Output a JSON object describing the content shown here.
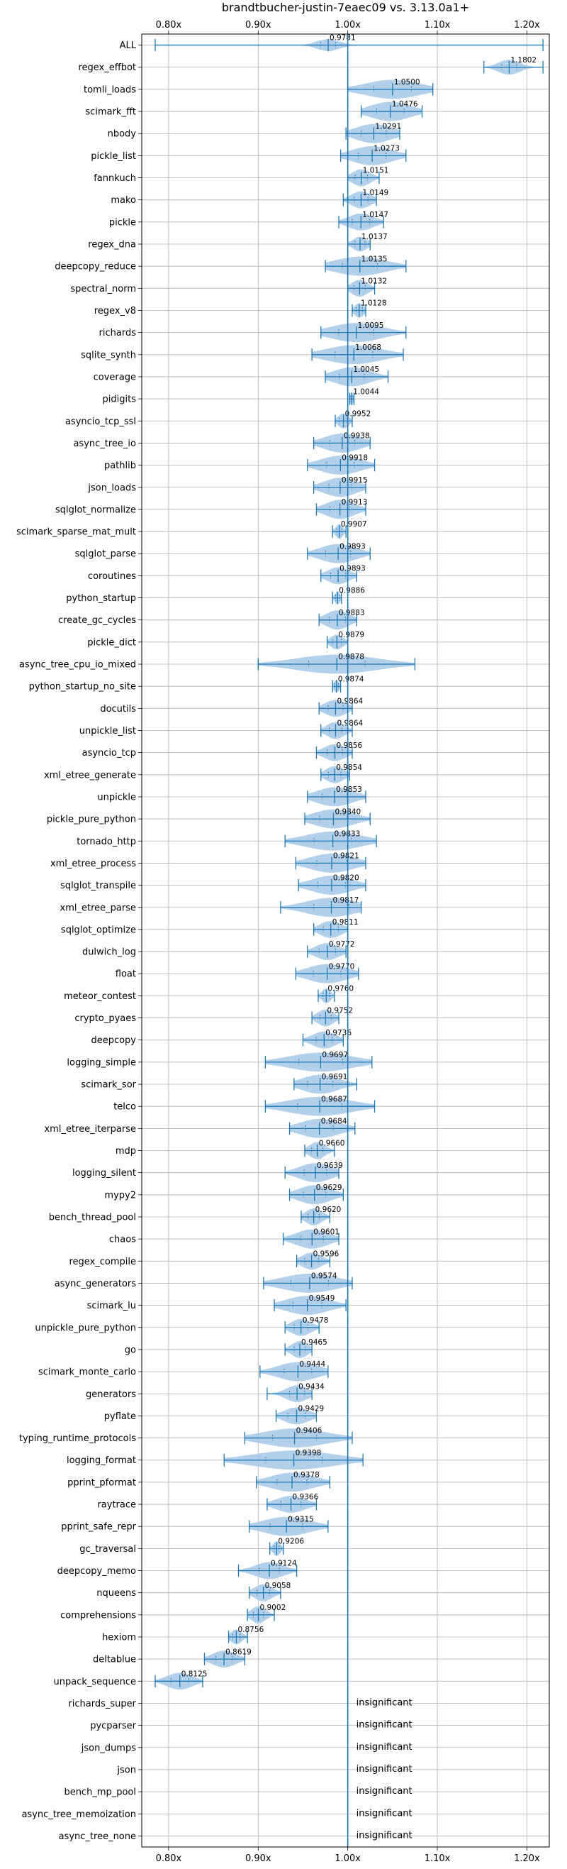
{
  "chart_data": {
    "type": "violin",
    "title": "brandtbucher-justin-7eaec09 vs. 3.13.0a1+",
    "x_ticks": [
      0.8,
      0.9,
      1.0,
      1.1,
      1.2
    ],
    "x_tick_labels": [
      "0.80x",
      "0.90x",
      "1.00x",
      "1.10x",
      "1.20x"
    ],
    "xlim": [
      0.77,
      1.225
    ],
    "reference_line": 1.0,
    "grid": true,
    "colors": {
      "line": "#1f77b4",
      "violin": "#a6c8e6",
      "grid": "#b0b0b0"
    },
    "rows": [
      {
        "name": "ALL",
        "value": 0.9781,
        "label": "0.9781",
        "min": 0.785,
        "max": 1.218,
        "spread": 0.012,
        "width": 0.6
      },
      {
        "name": "regex_effbot",
        "value": 1.1802,
        "label": "1.1802",
        "min": 1.152,
        "max": 1.218,
        "spread": 0.012,
        "width": 0.7
      },
      {
        "name": "tomli_loads",
        "value": 1.05,
        "label": "1.0500",
        "min": 1.0,
        "max": 1.095,
        "spread": 0.03,
        "width": 0.9
      },
      {
        "name": "scimark_fft",
        "value": 1.0476,
        "label": "1.0476",
        "min": 1.015,
        "max": 1.083,
        "spread": 0.022,
        "width": 0.9
      },
      {
        "name": "nbody",
        "value": 1.0291,
        "label": "1.0291",
        "min": 0.998,
        "max": 1.058,
        "spread": 0.02,
        "width": 0.9
      },
      {
        "name": "pickle_list",
        "value": 1.0273,
        "label": "1.0273",
        "min": 0.992,
        "max": 1.065,
        "spread": 0.022,
        "width": 0.9
      },
      {
        "name": "fannkuch",
        "value": 1.0151,
        "label": "1.0151",
        "min": 1.0,
        "max": 1.035,
        "spread": 0.01,
        "width": 0.8
      },
      {
        "name": "mako",
        "value": 1.0149,
        "label": "1.0149",
        "min": 0.995,
        "max": 1.032,
        "spread": 0.011,
        "width": 0.8
      },
      {
        "name": "pickle",
        "value": 1.0147,
        "label": "1.0147",
        "min": 0.99,
        "max": 1.04,
        "spread": 0.014,
        "width": 0.8
      },
      {
        "name": "regex_dna",
        "value": 1.0137,
        "label": "1.0137",
        "min": 1.0,
        "max": 1.025,
        "spread": 0.008,
        "width": 0.7
      },
      {
        "name": "deepcopy_reduce",
        "value": 1.0135,
        "label": "1.0135",
        "min": 0.975,
        "max": 1.065,
        "spread": 0.028,
        "width": 0.9
      },
      {
        "name": "spectral_norm",
        "value": 1.0132,
        "label": "1.0132",
        "min": 1.0,
        "max": 1.03,
        "spread": 0.009,
        "width": 0.8
      },
      {
        "name": "regex_v8",
        "value": 1.0128,
        "label": "1.0128",
        "min": 1.005,
        "max": 1.02,
        "spread": 0.005,
        "width": 0.7
      },
      {
        "name": "richards",
        "value": 1.0095,
        "label": "1.0095",
        "min": 0.97,
        "max": 1.065,
        "spread": 0.028,
        "width": 0.9
      },
      {
        "name": "sqlite_synth",
        "value": 1.0068,
        "label": "1.0068",
        "min": 0.96,
        "max": 1.062,
        "spread": 0.03,
        "width": 0.9
      },
      {
        "name": "coverage",
        "value": 1.0045,
        "label": "1.0045",
        "min": 0.975,
        "max": 1.045,
        "spread": 0.02,
        "width": 0.9
      },
      {
        "name": "pidigits",
        "value": 1.0044,
        "label": "1.0044",
        "min": 1.002,
        "max": 1.007,
        "spread": 0.002,
        "width": 0.6
      },
      {
        "name": "asyncio_tcp_ssl",
        "value": 0.9952,
        "label": "0.9952",
        "min": 0.986,
        "max": 1.005,
        "spread": 0.006,
        "width": 0.7
      },
      {
        "name": "async_tree_io",
        "value": 0.9938,
        "label": "0.9938",
        "min": 0.962,
        "max": 1.025,
        "spread": 0.02,
        "width": 0.9
      },
      {
        "name": "pathlib",
        "value": 0.9918,
        "label": "0.9918",
        "min": 0.955,
        "max": 1.03,
        "spread": 0.022,
        "width": 0.9
      },
      {
        "name": "json_loads",
        "value": 0.9915,
        "label": "0.9915",
        "min": 0.962,
        "max": 1.02,
        "spread": 0.018,
        "width": 0.9
      },
      {
        "name": "sqlglot_normalize",
        "value": 0.9913,
        "label": "0.9913",
        "min": 0.965,
        "max": 1.02,
        "spread": 0.016,
        "width": 0.9
      },
      {
        "name": "scimark_sparse_mat_mult",
        "value": 0.9907,
        "label": "0.9907",
        "min": 0.983,
        "max": 0.998,
        "spread": 0.004,
        "width": 0.7
      },
      {
        "name": "sqlglot_parse",
        "value": 0.9893,
        "label": "0.9893",
        "min": 0.955,
        "max": 1.025,
        "spread": 0.02,
        "width": 0.9
      },
      {
        "name": "coroutines",
        "value": 0.9893,
        "label": "0.9893",
        "min": 0.97,
        "max": 1.01,
        "spread": 0.012,
        "width": 0.8
      },
      {
        "name": "python_startup",
        "value": 0.9886,
        "label": "0.9886",
        "min": 0.983,
        "max": 0.993,
        "spread": 0.003,
        "width": 0.6
      },
      {
        "name": "create_gc_cycles",
        "value": 0.9883,
        "label": "0.9883",
        "min": 0.968,
        "max": 1.01,
        "spread": 0.013,
        "width": 0.9
      },
      {
        "name": "pickle_dict",
        "value": 0.9879,
        "label": "0.9879",
        "min": 0.977,
        "max": 1.0,
        "spread": 0.007,
        "width": 0.7
      },
      {
        "name": "async_tree_cpu_io_mixed",
        "value": 0.9878,
        "label": "0.9878",
        "min": 0.9,
        "max": 1.075,
        "spread": 0.045,
        "width": 0.9
      },
      {
        "name": "python_startup_no_site",
        "value": 0.9874,
        "label": "0.9874",
        "min": 0.983,
        "max": 0.992,
        "spread": 0.003,
        "width": 0.6
      },
      {
        "name": "docutils",
        "value": 0.9864,
        "label": "0.9864",
        "min": 0.968,
        "max": 1.005,
        "spread": 0.012,
        "width": 0.8
      },
      {
        "name": "unpickle_list",
        "value": 0.9864,
        "label": "0.9864",
        "min": 0.97,
        "max": 1.005,
        "spread": 0.01,
        "width": 0.8
      },
      {
        "name": "asyncio_tcp",
        "value": 0.9856,
        "label": "0.9856",
        "min": 0.965,
        "max": 1.005,
        "spread": 0.012,
        "width": 0.8
      },
      {
        "name": "xml_etree_generate",
        "value": 0.9854,
        "label": "0.9854",
        "min": 0.97,
        "max": 1.002,
        "spread": 0.01,
        "width": 0.8
      },
      {
        "name": "unpickle",
        "value": 0.9853,
        "label": "0.9853",
        "min": 0.955,
        "max": 1.02,
        "spread": 0.02,
        "width": 0.9
      },
      {
        "name": "pickle_pure_python",
        "value": 0.984,
        "label": "0.9840",
        "min": 0.952,
        "max": 1.025,
        "spread": 0.022,
        "width": 0.9
      },
      {
        "name": "tornado_http",
        "value": 0.9833,
        "label": "0.9833",
        "min": 0.93,
        "max": 1.032,
        "spread": 0.03,
        "width": 0.9
      },
      {
        "name": "xml_etree_process",
        "value": 0.9821,
        "label": "0.9821",
        "min": 0.942,
        "max": 1.02,
        "spread": 0.024,
        "width": 0.9
      },
      {
        "name": "sqlglot_transpile",
        "value": 0.982,
        "label": "0.9820",
        "min": 0.945,
        "max": 1.02,
        "spread": 0.022,
        "width": 0.9
      },
      {
        "name": "xml_etree_parse",
        "value": 0.9817,
        "label": "0.9817",
        "min": 0.925,
        "max": 1.015,
        "spread": 0.028,
        "width": 0.9
      },
      {
        "name": "sqlglot_optimize",
        "value": 0.9811,
        "label": "0.9811",
        "min": 0.962,
        "max": 1.0,
        "spread": 0.012,
        "width": 0.8
      },
      {
        "name": "dulwich_log",
        "value": 0.9772,
        "label": "0.9772",
        "min": 0.955,
        "max": 0.998,
        "spread": 0.013,
        "width": 0.8
      },
      {
        "name": "float",
        "value": 0.977,
        "label": "0.9770",
        "min": 0.942,
        "max": 1.012,
        "spread": 0.022,
        "width": 0.9
      },
      {
        "name": "meteor_contest",
        "value": 0.976,
        "label": "0.9760",
        "min": 0.967,
        "max": 0.985,
        "spread": 0.005,
        "width": 0.7
      },
      {
        "name": "crypto_pyaes",
        "value": 0.9752,
        "label": "0.9752",
        "min": 0.96,
        "max": 0.99,
        "spread": 0.009,
        "width": 0.8
      },
      {
        "name": "deepcopy",
        "value": 0.9736,
        "label": "0.9736",
        "min": 0.95,
        "max": 0.995,
        "spread": 0.013,
        "width": 0.8
      },
      {
        "name": "logging_simple",
        "value": 0.9697,
        "label": "0.9697",
        "min": 0.908,
        "max": 1.027,
        "spread": 0.035,
        "width": 0.9
      },
      {
        "name": "scimark_sor",
        "value": 0.9691,
        "label": "0.9691",
        "min": 0.94,
        "max": 1.01,
        "spread": 0.02,
        "width": 0.9
      },
      {
        "name": "telco",
        "value": 0.9687,
        "label": "0.9687",
        "min": 0.908,
        "max": 1.03,
        "spread": 0.035,
        "width": 0.9
      },
      {
        "name": "xml_etree_iterparse",
        "value": 0.9684,
        "label": "0.9684",
        "min": 0.935,
        "max": 1.008,
        "spread": 0.022,
        "width": 0.9
      },
      {
        "name": "mdp",
        "value": 0.966,
        "label": "0.9660",
        "min": 0.952,
        "max": 0.985,
        "spread": 0.009,
        "width": 0.8
      },
      {
        "name": "logging_silent",
        "value": 0.9639,
        "label": "0.9639",
        "min": 0.93,
        "max": 0.99,
        "spread": 0.018,
        "width": 0.9
      },
      {
        "name": "mypy2",
        "value": 0.9629,
        "label": "0.9629",
        "min": 0.935,
        "max": 0.995,
        "spread": 0.018,
        "width": 0.9
      },
      {
        "name": "bench_thread_pool",
        "value": 0.962,
        "label": "0.9620",
        "min": 0.948,
        "max": 0.98,
        "spread": 0.009,
        "width": 0.8
      },
      {
        "name": "chaos",
        "value": 0.9601,
        "label": "0.9601",
        "min": 0.928,
        "max": 0.99,
        "spread": 0.018,
        "width": 0.9
      },
      {
        "name": "regex_compile",
        "value": 0.9596,
        "label": "0.9596",
        "min": 0.943,
        "max": 0.98,
        "spread": 0.011,
        "width": 0.8
      },
      {
        "name": "async_generators",
        "value": 0.9574,
        "label": "0.9574",
        "min": 0.906,
        "max": 1.005,
        "spread": 0.03,
        "width": 0.9
      },
      {
        "name": "scimark_lu",
        "value": 0.9549,
        "label": "0.9549",
        "min": 0.918,
        "max": 0.998,
        "spread": 0.023,
        "width": 0.9
      },
      {
        "name": "unpickle_pure_python",
        "value": 0.9478,
        "label": "0.9478",
        "min": 0.93,
        "max": 0.968,
        "spread": 0.011,
        "width": 0.8
      },
      {
        "name": "go",
        "value": 0.9465,
        "label": "0.9465",
        "min": 0.93,
        "max": 0.96,
        "spread": 0.009,
        "width": 0.8
      },
      {
        "name": "scimark_monte_carlo",
        "value": 0.9444,
        "label": "0.9444",
        "min": 0.902,
        "max": 0.978,
        "spread": 0.022,
        "width": 0.9
      },
      {
        "name": "generators",
        "value": 0.9434,
        "label": "0.9434",
        "min": 0.91,
        "max": 0.96,
        "spread": 0.012,
        "width": 0.8
      },
      {
        "name": "pyflate",
        "value": 0.9429,
        "label": "0.9429",
        "min": 0.92,
        "max": 0.965,
        "spread": 0.014,
        "width": 0.8
      },
      {
        "name": "typing_runtime_protocols",
        "value": 0.9406,
        "label": "0.9406",
        "min": 0.885,
        "max": 1.005,
        "spread": 0.035,
        "width": 0.9
      },
      {
        "name": "logging_format",
        "value": 0.9398,
        "label": "0.9398",
        "min": 0.862,
        "max": 1.017,
        "spread": 0.045,
        "width": 0.9
      },
      {
        "name": "pprint_pformat",
        "value": 0.9378,
        "label": "0.9378",
        "min": 0.898,
        "max": 0.98,
        "spread": 0.024,
        "width": 0.9
      },
      {
        "name": "raytrace",
        "value": 0.9366,
        "label": "0.9366",
        "min": 0.91,
        "max": 0.965,
        "spread": 0.016,
        "width": 0.8
      },
      {
        "name": "pprint_safe_repr",
        "value": 0.9315,
        "label": "0.9315",
        "min": 0.89,
        "max": 0.978,
        "spread": 0.026,
        "width": 0.9
      },
      {
        "name": "gc_traversal",
        "value": 0.9206,
        "label": "0.9206",
        "min": 0.913,
        "max": 0.928,
        "spread": 0.004,
        "width": 0.7
      },
      {
        "name": "deepcopy_memo",
        "value": 0.9124,
        "label": "0.9124",
        "min": 0.878,
        "max": 0.943,
        "spread": 0.016,
        "width": 0.8
      },
      {
        "name": "nqueens",
        "value": 0.9058,
        "label": "0.9058",
        "min": 0.89,
        "max": 0.925,
        "spread": 0.01,
        "width": 0.8
      },
      {
        "name": "comprehensions",
        "value": 0.9002,
        "label": "0.9002",
        "min": 0.888,
        "max": 0.918,
        "spread": 0.008,
        "width": 0.8
      },
      {
        "name": "hexiom",
        "value": 0.8756,
        "label": "0.8756",
        "min": 0.867,
        "max": 0.888,
        "spread": 0.006,
        "width": 0.7
      },
      {
        "name": "deltablue",
        "value": 0.8619,
        "label": "0.8619",
        "min": 0.84,
        "max": 0.885,
        "spread": 0.013,
        "width": 0.8
      },
      {
        "name": "unpack_sequence",
        "value": 0.8125,
        "label": "0.8125",
        "min": 0.785,
        "max": 0.838,
        "spread": 0.014,
        "width": 0.8
      },
      {
        "name": "richards_super",
        "insignificant": true
      },
      {
        "name": "pycparser",
        "insignificant": true
      },
      {
        "name": "json_dumps",
        "insignificant": true
      },
      {
        "name": "json",
        "insignificant": true
      },
      {
        "name": "bench_mp_pool",
        "insignificant": true
      },
      {
        "name": "async_tree_memoization",
        "insignificant": true
      },
      {
        "name": "async_tree_none",
        "insignificant": true
      }
    ],
    "insignificant_label": "insignificant"
  }
}
